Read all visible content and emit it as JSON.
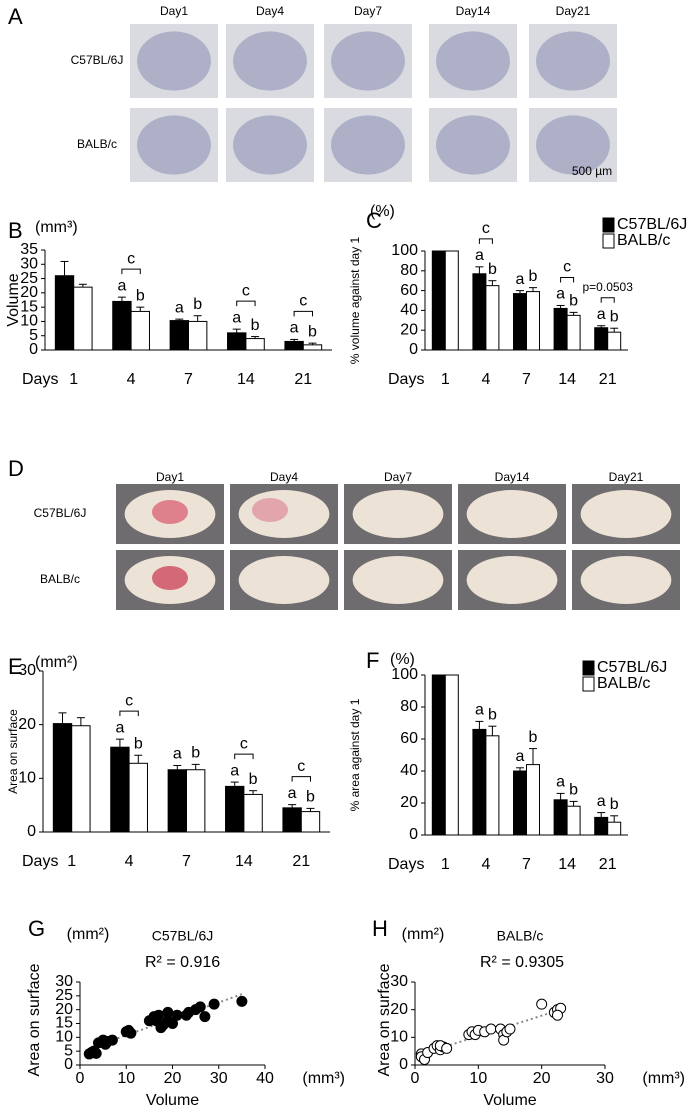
{
  "panel_a": {
    "letter": "A",
    "columns": [
      "Day1",
      "Day4",
      "Day7",
      "Day14",
      "Day21"
    ],
    "rows": [
      "C57BL/6J",
      "BALB/c"
    ],
    "scale_label": "500 µm"
  },
  "panel_d": {
    "letter": "D",
    "columns": [
      "Day1",
      "Day4",
      "Day7",
      "Day14",
      "Day21"
    ],
    "rows": [
      "C57BL/6J",
      "BALB/c"
    ]
  },
  "chart_data": [
    {
      "type": "bar",
      "panel": "B",
      "unit": "(mm³)",
      "ylabel": "Volume",
      "xlabel": "Days",
      "categories": [
        "1",
        "4",
        "7",
        "14",
        "21"
      ],
      "ylim": [
        0,
        35
      ],
      "yticks": [
        0,
        5,
        10,
        15,
        20,
        25,
        30,
        35
      ],
      "series": [
        {
          "color": "#000000",
          "values": [
            26,
            17,
            10.3,
            6,
            3
          ],
          "errors": [
            5,
            1.5,
            0.5,
            1.3,
            0.7
          ],
          "letters": [
            null,
            "a",
            "a",
            "a",
            "a"
          ]
        },
        {
          "color": "#ffffff",
          "values": [
            22,
            13.5,
            10,
            4,
            1.8
          ],
          "errors": [
            1,
            1.5,
            2,
            0.7,
            0.6
          ],
          "letters": [
            null,
            "b",
            "b",
            "b",
            "b"
          ]
        }
      ],
      "bracket_labels": [
        null,
        "c",
        null,
        "c",
        "c"
      ]
    },
    {
      "type": "bar",
      "panel": "C",
      "unit": "(%)",
      "ylabel": "% volume against day 1",
      "xlabel": "Days",
      "categories": [
        "1",
        "4",
        "7",
        "14",
        "21"
      ],
      "ylim": [
        0,
        100
      ],
      "yticks": [
        0,
        20,
        40,
        60,
        80,
        100
      ],
      "legend": "upper right",
      "series": [
        {
          "name": "C57BL/6J",
          "color": "#000000",
          "values": [
            100,
            77,
            57,
            42,
            22.5
          ],
          "errors": [
            0,
            7,
            3,
            3,
            2
          ],
          "letters": [
            null,
            "a",
            "a",
            "a",
            "a"
          ]
        },
        {
          "name": "BALB/c",
          "color": "#ffffff",
          "values": [
            100,
            65,
            59,
            35,
            18
          ],
          "errors": [
            0,
            5,
            4,
            3,
            4
          ],
          "letters": [
            null,
            "b",
            "b",
            "b",
            "b"
          ]
        }
      ],
      "bracket_labels": [
        null,
        "c",
        null,
        "c",
        "p=0.0503"
      ]
    },
    {
      "type": "bar",
      "panel": "E",
      "unit": "(mm²)",
      "ylabel": "Area on surface",
      "xlabel": "Days",
      "categories": [
        "1",
        "4",
        "7",
        "14",
        "21"
      ],
      "ylim": [
        0,
        30
      ],
      "yticks": [
        0,
        10,
        20,
        30
      ],
      "series": [
        {
          "color": "#000000",
          "values": [
            20.2,
            15.8,
            11.6,
            8.5,
            4.5
          ],
          "errors": [
            2,
            1.5,
            0.8,
            0.8,
            0.6
          ],
          "letters": [
            null,
            "a",
            "a",
            "a",
            "a"
          ]
        },
        {
          "color": "#ffffff",
          "values": [
            19.8,
            12.8,
            11.6,
            7,
            3.8
          ],
          "errors": [
            1.5,
            1.5,
            1,
            0.7,
            0.6
          ],
          "letters": [
            null,
            "b",
            "b",
            "b",
            "b"
          ]
        }
      ],
      "bracket_labels": [
        null,
        "c",
        null,
        "c",
        "c"
      ]
    },
    {
      "type": "bar",
      "panel": "F",
      "unit": "(%)",
      "ylabel": "% area against day 1",
      "xlabel": "Days",
      "categories": [
        "1",
        "4",
        "7",
        "14",
        "21"
      ],
      "ylim": [
        0,
        100
      ],
      "yticks": [
        0,
        20,
        40,
        60,
        80,
        100
      ],
      "legend": "upper right",
      "series": [
        {
          "name": "C57BL/6J",
          "color": "#000000",
          "values": [
            100,
            66,
            40,
            22,
            11
          ],
          "errors": [
            0,
            5,
            2,
            4,
            3
          ],
          "letters": [
            null,
            "a",
            "a",
            "a",
            "a"
          ]
        },
        {
          "name": "BALB/c",
          "color": "#ffffff",
          "values": [
            100,
            62,
            44,
            18,
            8
          ],
          "errors": [
            0,
            6,
            10,
            3,
            4
          ],
          "letters": [
            null,
            "b",
            "b",
            "b",
            "b"
          ]
        }
      ],
      "bracket_labels": [
        null,
        null,
        null,
        null,
        null
      ]
    },
    {
      "type": "scatter",
      "panel": "G",
      "title": "C57BL/6J",
      "xlabel": "Volume",
      "xunit": "(mm³)",
      "ylabel": "Area on surface",
      "yunit": "(mm²)",
      "annotation": "R² = 0.916",
      "marker_fill": "#000000",
      "trendline": true,
      "xlim": [
        0,
        40
      ],
      "xticks": [
        0,
        10,
        20,
        30,
        40
      ],
      "ylim": [
        0,
        30
      ],
      "yticks": [
        0,
        5,
        10,
        15,
        20,
        25,
        30
      ],
      "x": [
        2,
        2.5,
        3,
        3.5,
        4,
        5,
        5.5,
        6,
        7,
        10,
        11,
        10.5,
        15,
        16,
        16.5,
        17,
        17.5,
        18,
        19,
        19,
        20,
        21,
        23,
        23.5,
        25,
        26,
        27,
        29,
        35
      ],
      "values": [
        4,
        4.5,
        5,
        4.2,
        8,
        9,
        7.5,
        8.5,
        9,
        12,
        11.5,
        12.5,
        16,
        17.5,
        16,
        18,
        13.5,
        14.5,
        16,
        19,
        15,
        18,
        18,
        19,
        20,
        21,
        17.5,
        22,
        23
      ]
    },
    {
      "type": "scatter",
      "panel": "H",
      "title": "BALB/c",
      "xlabel": "Volume",
      "xunit": "(mm³)",
      "ylabel": "Area on surface",
      "yunit": "(mm²)",
      "annotation": "R² = 0.9305",
      "marker_fill": "#ffffff",
      "trendline": true,
      "xlim": [
        0,
        30
      ],
      "xticks": [
        0,
        10,
        20,
        30
      ],
      "ylim": [
        0,
        30
      ],
      "yticks": [
        0,
        10,
        20,
        30
      ],
      "x": [
        1,
        1,
        1.5,
        2,
        3,
        3.5,
        4,
        4.5,
        4,
        5,
        8.5,
        9,
        9.5,
        10,
        11,
        12,
        13.5,
        14,
        14,
        14.5,
        15,
        20,
        22,
        22.5,
        23,
        22.5
      ],
      "values": [
        4,
        3,
        2,
        4.5,
        6,
        7,
        5.5,
        6.5,
        7,
        6,
        11,
        12,
        11,
        12.5,
        12,
        13,
        13,
        11,
        9,
        12,
        13,
        22,
        19,
        20,
        20.5,
        18
      ]
    }
  ]
}
